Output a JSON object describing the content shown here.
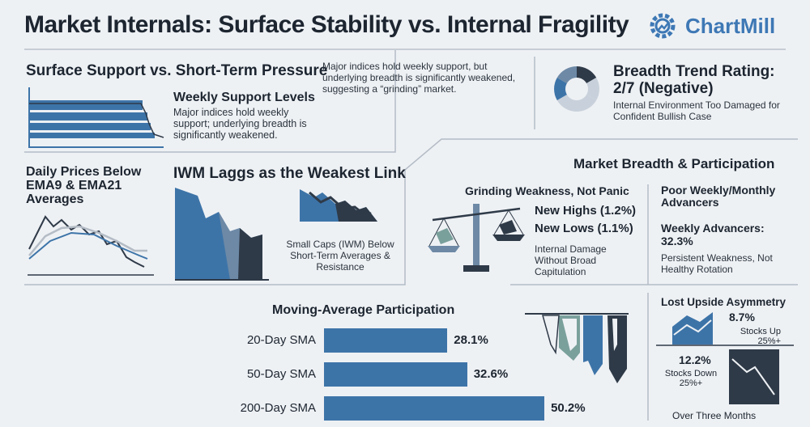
{
  "header": {
    "title": "Market Internals: Surface Stability vs. Internal Fragility",
    "brand": "ChartMill"
  },
  "surface": {
    "heading": "Surface Support vs. Short-Term Pressure",
    "intro": "Major indices hold weekly support, but underlying breadth is significantly weakened, suggesting a “grinding” market.",
    "weekly_title": "Weekly Support Levels",
    "weekly_text": "Major indices hold weekly support; underlying breadth is significantly weakened."
  },
  "daily": {
    "title": "Daily Prices Below EMA9 & EMA21 Averages"
  },
  "iwm": {
    "title": "IWM Laggs as the Weakest Link",
    "text": "Small Caps (IWM) Below Short-Term Averages & Resistance"
  },
  "rating": {
    "title": "Breadth Trend Rating: 2/7 (Negative)",
    "text": "Internal Environment Too Damaged for Confident Bullish Case",
    "score": 2,
    "max": 7
  },
  "breadth": {
    "heading": "Market Breadth & Participation",
    "grinding_title": "Grinding Weakness, Not Panic",
    "new_highs": "New Highs (1.2%)",
    "new_lows": "New Lows (1.1%)",
    "grinding_text": "Internal Damage Without Broad Capitulation",
    "weekly_title": "Poor Weekly/Monthly Advancers",
    "weekly_value": "Weekly Advancers: 32.3%",
    "weekly_text": "Persistent Weakness, Not Healthy Rotation"
  },
  "asymmetry": {
    "title": "Lost Upside Asymmetry",
    "up_value": "8.7%",
    "up_label": "Stocks Up 25%+",
    "down_value": "12.2%",
    "down_label": "Stocks Down 25%+",
    "footer": "Over Three Months"
  },
  "colors": {
    "accent": "#3d74a8",
    "dark": "#2f3a48",
    "teal": "#7aa09c"
  },
  "chart_data": {
    "type": "bar",
    "orientation": "horizontal",
    "title": "Moving-Average Participation",
    "categories": [
      "20-Day SMA",
      "50-Day SMA",
      "200-Day SMA"
    ],
    "values": [
      28.1,
      32.6,
      50.2
    ],
    "labels": [
      "28.1%",
      "32.6%",
      "50.2%"
    ],
    "xlim": [
      0,
      100
    ],
    "xlabel": "",
    "ylabel": ""
  }
}
